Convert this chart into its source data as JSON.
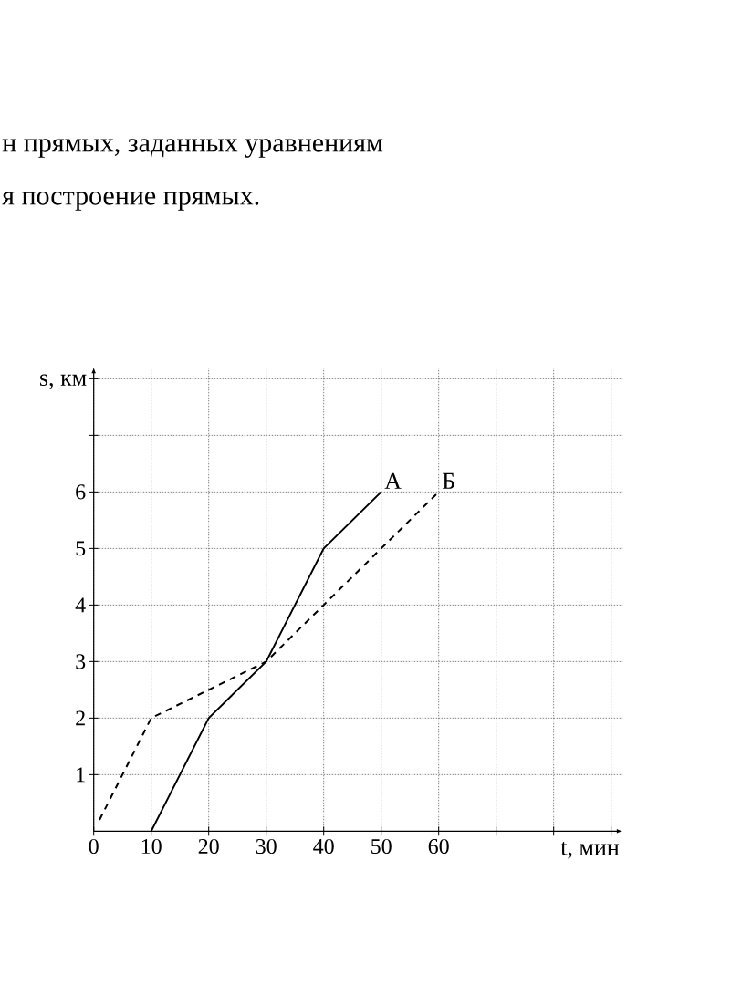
{
  "chart_data": {
    "type": "line",
    "xlabel": "t, мин",
    "ylabel": "s, км",
    "xlim": [
      0,
      92
    ],
    "ylim": [
      0,
      8.2
    ],
    "xticks": [
      0,
      10,
      20,
      30,
      40,
      50,
      60,
      {
        "value": 70,
        "label": null
      },
      {
        "value": 80,
        "label": null
      },
      {
        "value": 90,
        "label": null
      }
    ],
    "yticks": [
      1,
      2,
      3,
      4,
      5,
      6,
      {
        "value": 7,
        "label": null
      },
      {
        "value": 8,
        "label": null
      }
    ],
    "grid": true,
    "annotations": [
      "н прямых, заданных уравнениям",
      "я построение прямых."
    ],
    "series": [
      {
        "name": "А",
        "color": "#000000",
        "line_style": "solid",
        "x": [
          10,
          20,
          30,
          40,
          50
        ],
        "values": [
          0,
          2,
          3,
          5,
          6
        ]
      },
      {
        "name": "Б",
        "color": "#000000",
        "line_style": "dashed",
        "x": [
          1,
          10,
          20,
          30,
          40,
          50,
          60
        ],
        "values": [
          0.2,
          2,
          2.5,
          3,
          4,
          5,
          6
        ]
      }
    ]
  }
}
